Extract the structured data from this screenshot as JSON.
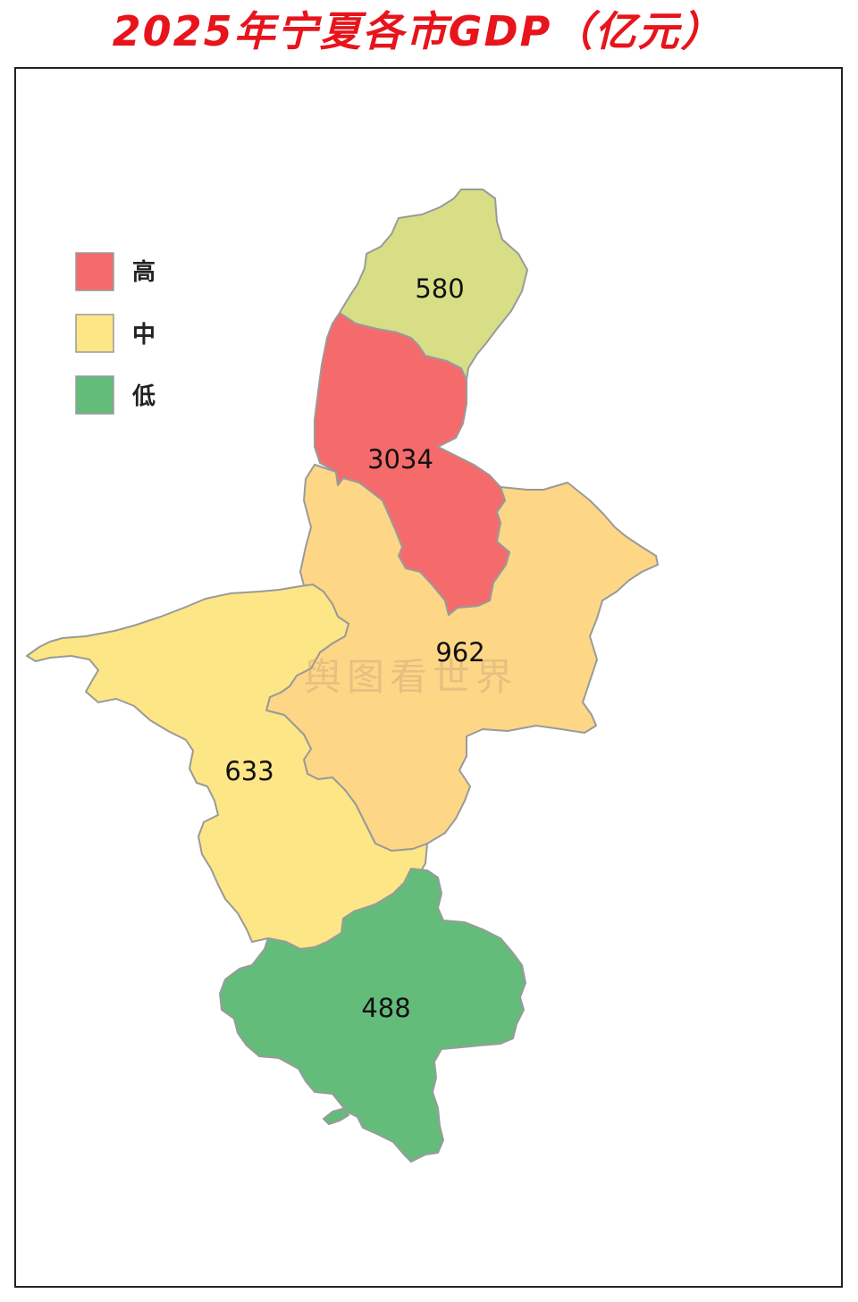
{
  "title": "2025年宁夏各市GDP（亿元）",
  "legend": {
    "items": [
      {
        "label": "高",
        "color": "#f56b6b"
      },
      {
        "label": "中",
        "color": "#fde686"
      },
      {
        "label": "低",
        "color": "#63bc7a"
      }
    ]
  },
  "regions": [
    {
      "id": "shizuishan",
      "value": "580",
      "color": "#d8de85"
    },
    {
      "id": "yinchuan",
      "value": "3034",
      "color": "#f56b6b"
    },
    {
      "id": "wuzhong",
      "value": "962",
      "color": "#fdd786"
    },
    {
      "id": "zhongwei",
      "value": "633",
      "color": "#fde686"
    },
    {
      "id": "guyuan",
      "value": "488",
      "color": "#63bc7a"
    }
  ],
  "watermark": "舆图看世界",
  "colors": {
    "title": "#e8141c",
    "border": "#9a9a9a"
  }
}
